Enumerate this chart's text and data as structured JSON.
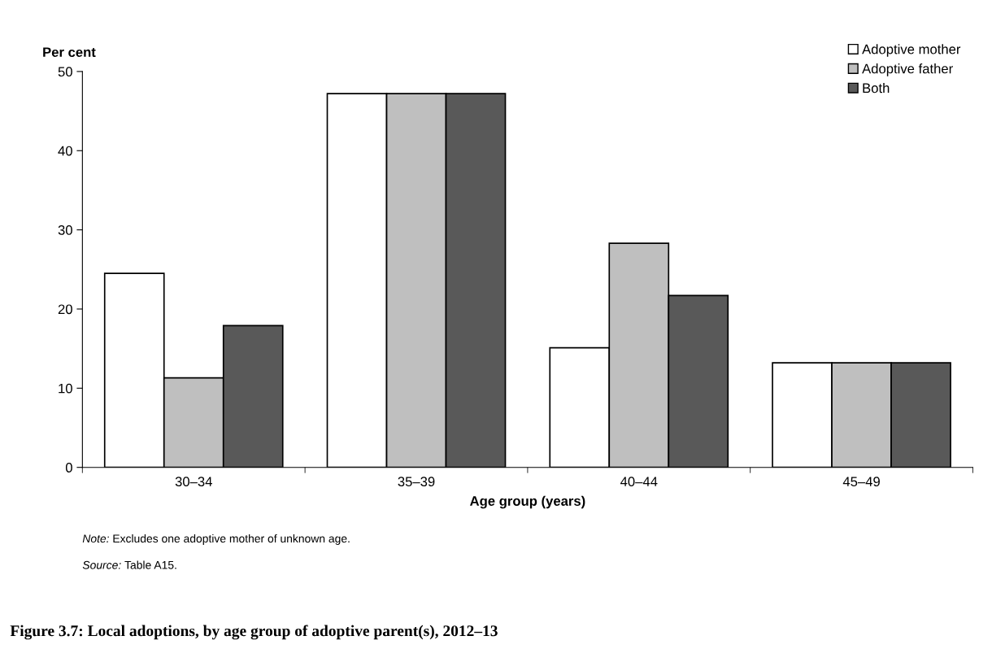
{
  "chart_data": {
    "type": "bar",
    "title": "Figure 3.7: Local adoptions, by age group of adoptive parent(s), 2012–13",
    "xlabel": "Age group (years)",
    "ylabel": "Per cent",
    "categories": [
      "30–34",
      "35–39",
      "40–44",
      "45–49"
    ],
    "series": [
      {
        "name": "Adoptive mother",
        "color": "#ffffff",
        "values": [
          24.5,
          47.2,
          15.1,
          13.2
        ]
      },
      {
        "name": "Adoptive father",
        "color": "#bfbfbf",
        "values": [
          11.3,
          47.2,
          28.3,
          13.2
        ]
      },
      {
        "name": "Both",
        "color": "#595959",
        "values": [
          17.9,
          47.2,
          21.7,
          13.2
        ]
      }
    ],
    "ylim": [
      0,
      50
    ],
    "yticks": [
      0,
      10,
      20,
      30,
      40,
      50
    ],
    "grid": false,
    "legend": "top right",
    "annotations": [
      "Note: Excludes one adoptive mother of unknown age.",
      "Source: Table A15."
    ]
  }
}
